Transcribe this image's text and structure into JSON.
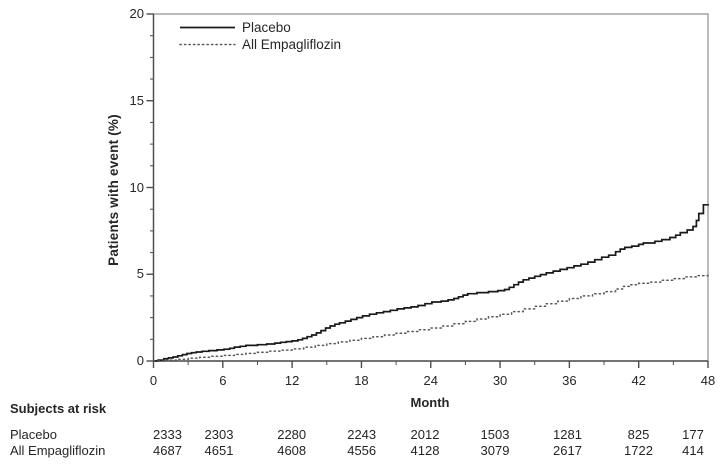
{
  "chart_data": {
    "type": "line",
    "subtype": "kaplan-meier-cumulative-incidence",
    "title": "",
    "xlabel": "Month",
    "ylabel": "Patients with event (%)",
    "xlim": [
      0,
      48
    ],
    "ylim": [
      0,
      20
    ],
    "x_ticks": [
      0,
      6,
      12,
      18,
      24,
      30,
      36,
      42,
      48
    ],
    "y_ticks": [
      0,
      5,
      10,
      15,
      20
    ],
    "x_minor_tick_step": 3,
    "y_minor_tick_step": 1.25,
    "grid": false,
    "legend_position": "inside-top-left",
    "series": [
      {
        "name": "Placebo",
        "line_style": "solid",
        "color": "#1a1a1a",
        "step": true,
        "points": [
          [
            0,
            0
          ],
          [
            0.4,
            0.05
          ],
          [
            0.9,
            0.13
          ],
          [
            1.3,
            0.18
          ],
          [
            1.7,
            0.23
          ],
          [
            2.1,
            0.3
          ],
          [
            2.5,
            0.37
          ],
          [
            2.9,
            0.43
          ],
          [
            3.3,
            0.48
          ],
          [
            3.7,
            0.52
          ],
          [
            4.2,
            0.56
          ],
          [
            4.8,
            0.6
          ],
          [
            5.5,
            0.64
          ],
          [
            6.1,
            0.68
          ],
          [
            6.6,
            0.73
          ],
          [
            7,
            0.8
          ],
          [
            7.5,
            0.85
          ],
          [
            8,
            0.9
          ],
          [
            9,
            0.94
          ],
          [
            9.8,
            0.98
          ],
          [
            10.5,
            1.03
          ],
          [
            11,
            1.08
          ],
          [
            11.5,
            1.12
          ],
          [
            12,
            1.16
          ],
          [
            12.5,
            1.22
          ],
          [
            12.9,
            1.3
          ],
          [
            13.3,
            1.4
          ],
          [
            13.7,
            1.5
          ],
          [
            14.1,
            1.62
          ],
          [
            14.5,
            1.75
          ],
          [
            14.9,
            1.9
          ],
          [
            15.3,
            2.02
          ],
          [
            15.7,
            2.12
          ],
          [
            16.1,
            2.2
          ],
          [
            16.6,
            2.3
          ],
          [
            17.1,
            2.4
          ],
          [
            17.6,
            2.5
          ],
          [
            18.1,
            2.6
          ],
          [
            18.7,
            2.7
          ],
          [
            19.3,
            2.78
          ],
          [
            19.9,
            2.85
          ],
          [
            20.5,
            2.92
          ],
          [
            21.1,
            3.0
          ],
          [
            21.7,
            3.06
          ],
          [
            22.3,
            3.12
          ],
          [
            22.9,
            3.2
          ],
          [
            23.5,
            3.3
          ],
          [
            24.1,
            3.4
          ],
          [
            24.9,
            3.45
          ],
          [
            25.5,
            3.52
          ],
          [
            26,
            3.6
          ],
          [
            26.4,
            3.7
          ],
          [
            26.8,
            3.8
          ],
          [
            27.2,
            3.88
          ],
          [
            28,
            3.94
          ],
          [
            29,
            4.0
          ],
          [
            29.8,
            4.06
          ],
          [
            30.4,
            4.12
          ],
          [
            30.8,
            4.25
          ],
          [
            31.2,
            4.4
          ],
          [
            31.6,
            4.55
          ],
          [
            32,
            4.68
          ],
          [
            32.5,
            4.78
          ],
          [
            33,
            4.88
          ],
          [
            33.5,
            4.98
          ],
          [
            34,
            5.08
          ],
          [
            34.6,
            5.18
          ],
          [
            35.2,
            5.28
          ],
          [
            35.8,
            5.38
          ],
          [
            36.4,
            5.48
          ],
          [
            37,
            5.58
          ],
          [
            37.6,
            5.7
          ],
          [
            38.2,
            5.84
          ],
          [
            38.8,
            5.98
          ],
          [
            39.4,
            6.1
          ],
          [
            40,
            6.3
          ],
          [
            40.4,
            6.45
          ],
          [
            40.8,
            6.55
          ],
          [
            41.4,
            6.62
          ],
          [
            42,
            6.72
          ],
          [
            42.4,
            6.8
          ],
          [
            43.4,
            6.9
          ],
          [
            44,
            7.0
          ],
          [
            44.7,
            7.12
          ],
          [
            45.2,
            7.25
          ],
          [
            45.6,
            7.4
          ],
          [
            46.2,
            7.55
          ],
          [
            46.7,
            7.75
          ],
          [
            47,
            8.1
          ],
          [
            47.2,
            8.5
          ],
          [
            47.6,
            9.0
          ],
          [
            48,
            9.05
          ]
        ]
      },
      {
        "name": "All Empagliflozin",
        "line_style": "dotted",
        "color": "#595959",
        "step": true,
        "points": [
          [
            0,
            0
          ],
          [
            1,
            0.05
          ],
          [
            2,
            0.1
          ],
          [
            3,
            0.17
          ],
          [
            4,
            0.22
          ],
          [
            5,
            0.27
          ],
          [
            6,
            0.32
          ],
          [
            7,
            0.38
          ],
          [
            8,
            0.44
          ],
          [
            9,
            0.5
          ],
          [
            10,
            0.57
          ],
          [
            11,
            0.63
          ],
          [
            12,
            0.7
          ],
          [
            13,
            0.8
          ],
          [
            14,
            0.9
          ],
          [
            15,
            1.0
          ],
          [
            16,
            1.1
          ],
          [
            17,
            1.2
          ],
          [
            18,
            1.3
          ],
          [
            19,
            1.4
          ],
          [
            20,
            1.5
          ],
          [
            21,
            1.6
          ],
          [
            22,
            1.7
          ],
          [
            23,
            1.8
          ],
          [
            24,
            1.9
          ],
          [
            25,
            2.02
          ],
          [
            26,
            2.15
          ],
          [
            27,
            2.28
          ],
          [
            28,
            2.42
          ],
          [
            29,
            2.55
          ],
          [
            30,
            2.7
          ],
          [
            31,
            2.85
          ],
          [
            32,
            3.0
          ],
          [
            33,
            3.15
          ],
          [
            34,
            3.3
          ],
          [
            35,
            3.45
          ],
          [
            36,
            3.6
          ],
          [
            37,
            3.75
          ],
          [
            38,
            3.88
          ],
          [
            39,
            4.0
          ],
          [
            40,
            4.15
          ],
          [
            40.6,
            4.3
          ],
          [
            41.2,
            4.4
          ],
          [
            42,
            4.48
          ],
          [
            43,
            4.55
          ],
          [
            44,
            4.65
          ],
          [
            45,
            4.75
          ],
          [
            46,
            4.85
          ],
          [
            47,
            4.92
          ],
          [
            48,
            5.0
          ]
        ]
      }
    ]
  },
  "at_risk_table": {
    "header": "Subjects at risk",
    "rows": [
      {
        "label": "Placebo",
        "values": [
          "2333",
          "2303",
          "2280",
          "2243",
          "2012",
          "1503",
          "1281",
          "825",
          "177"
        ]
      },
      {
        "label": "All Empagliflozin",
        "values": [
          "4687",
          "4651",
          "4608",
          "4556",
          "4128",
          "3079",
          "2617",
          "1722",
          "414"
        ]
      }
    ]
  },
  "colors": {
    "axis": "#4d4d4d",
    "frame": "#8c8c8c",
    "text": "#262626"
  }
}
